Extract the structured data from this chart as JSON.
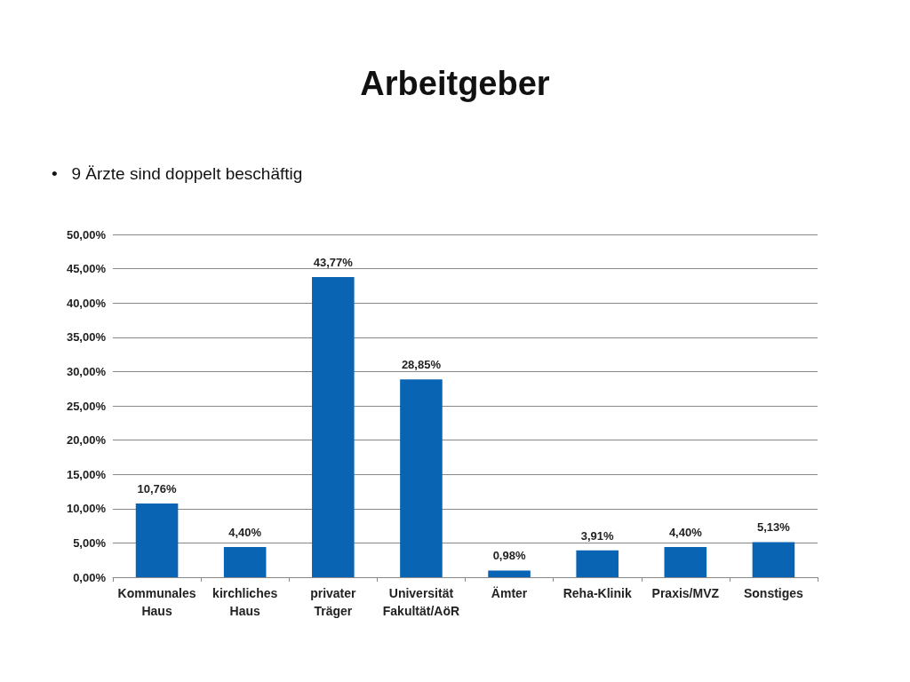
{
  "chart_data": {
    "type": "bar",
    "title": "Arbeitgeber",
    "annotations": [
      "•   9 Ärzte sind doppelt beschäftig"
    ],
    "categories": [
      "Kommunales\nHaus",
      "kirchliches\nHaus",
      "privater\nTräger",
      "Universität\nFakultät/AöR",
      "Ämter",
      "Reha-Klinik",
      "Praxis/MVZ",
      "Sonstiges"
    ],
    "values": [
      10.76,
      4.4,
      43.77,
      28.85,
      0.98,
      3.91,
      4.4,
      5.13
    ],
    "value_labels": [
      "10,76%",
      "4,40%",
      "43,77%",
      "28,85%",
      "0,98%",
      "3,91%",
      "4,40%",
      "5,13%"
    ],
    "color": "#0a64b4",
    "ylim": [
      0,
      50
    ],
    "yticks": [
      {
        "value": 0,
        "label": "0,00%"
      },
      {
        "value": 5,
        "label": "5,00%"
      },
      {
        "value": 10,
        "label": "10,00%"
      },
      {
        "value": 15,
        "label": "15,00%"
      },
      {
        "value": 20,
        "label": "20,00%"
      },
      {
        "value": 25,
        "label": "25,00%"
      },
      {
        "value": 30,
        "label": "30,00%"
      },
      {
        "value": 35,
        "label": "35,00%"
      },
      {
        "value": 40,
        "label": "40,00%"
      },
      {
        "value": 45,
        "label": "45,00%"
      },
      {
        "value": 50,
        "label": "50,00%"
      }
    ],
    "grid": "y"
  }
}
